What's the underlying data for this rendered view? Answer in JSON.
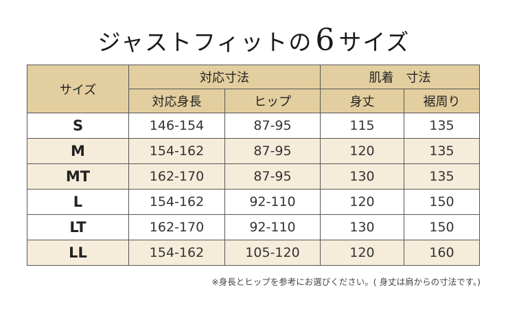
{
  "title": {
    "pre": "ジャストフィットの",
    "num": "6",
    "post": "サイズ"
  },
  "table": {
    "size_header": "サイズ",
    "group1": "対応寸法",
    "group2": "肌着　寸法",
    "cols": [
      "対応身長",
      "ヒップ",
      "身丈",
      "裾周り"
    ],
    "rows": [
      {
        "size": "S",
        "height": "146-154",
        "hip": "87-95",
        "length": "115",
        "hem": "135"
      },
      {
        "size": "M",
        "height": "154-162",
        "hip": "87-95",
        "length": "120",
        "hem": "135"
      },
      {
        "size": "MT",
        "height": "162-170",
        "hip": "87-95",
        "length": "130",
        "hem": "135"
      },
      {
        "size": "L",
        "height": "154-162",
        "hip": "92-110",
        "length": "120",
        "hem": "150"
      },
      {
        "size": "LT",
        "height": "162-170",
        "hip": "92-110",
        "length": "130",
        "hem": "150"
      },
      {
        "size": "LL",
        "height": "154-162",
        "hip": "105-120",
        "length": "120",
        "hem": "160"
      }
    ]
  },
  "note": "※身長とヒップを参考にお選びください。( 身丈は肩からの寸法です。)",
  "colors": {
    "header_bg": "#e3ce9f",
    "alt_row_bg": "#f6ecda",
    "border": "#555555"
  }
}
